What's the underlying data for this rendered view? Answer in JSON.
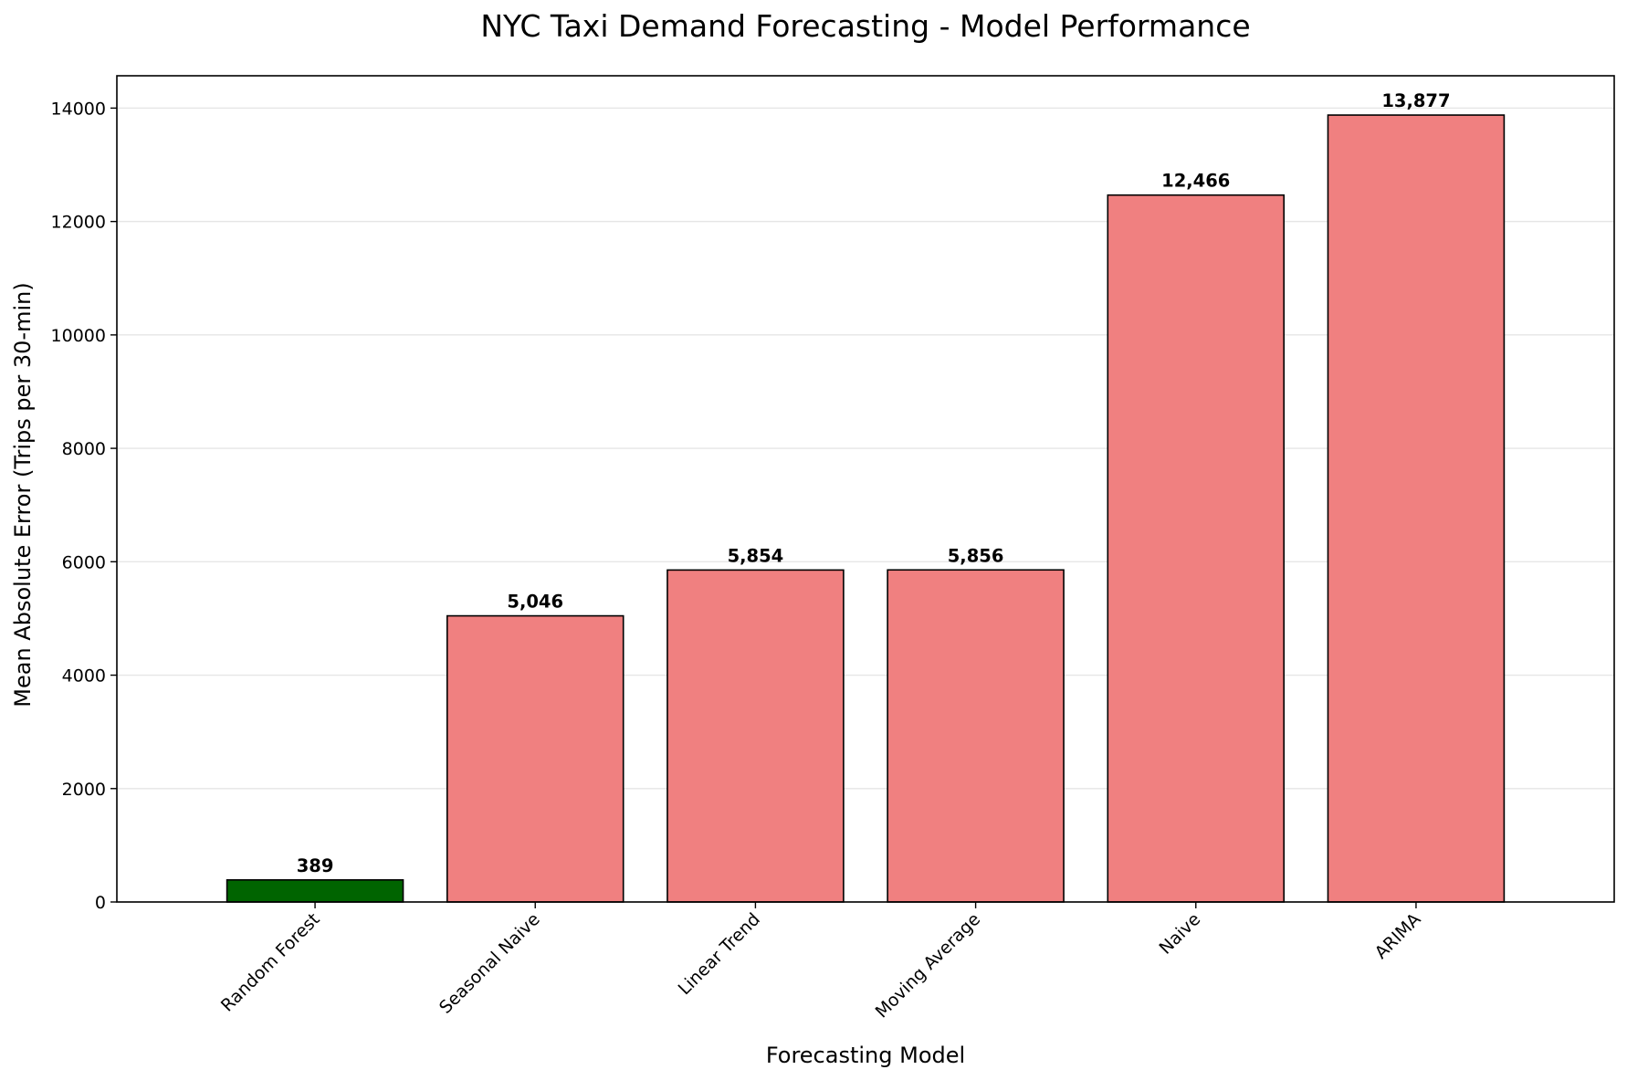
{
  "chart_data": {
    "type": "bar",
    "title": "NYC Taxi Demand Forecasting - Model Performance",
    "xlabel": "Forecasting Model",
    "ylabel": "Mean Absolute Error (Trips per 30-min)",
    "categories": [
      "Random Forest",
      "Seasonal Naive",
      "Linear Trend",
      "Moving Average",
      "Naive",
      "ARIMA"
    ],
    "values": [
      389,
      5046,
      5854,
      5856,
      12466,
      13877
    ],
    "data_labels": [
      "389",
      "5,046",
      "5,854",
      "5,856",
      "12,466",
      "13,877"
    ],
    "bar_colors": [
      "#006400",
      "#f08080",
      "#f08080",
      "#f08080",
      "#f08080",
      "#f08080"
    ],
    "edge_color": "#000000",
    "ylim": [
      0,
      14570
    ],
    "yticks": [
      0,
      2000,
      4000,
      6000,
      8000,
      10000,
      12000,
      14000
    ],
    "ytick_labels": [
      "0",
      "2000",
      "4000",
      "6000",
      "8000",
      "10000",
      "12000",
      "14000"
    ],
    "grid": "y-axis only",
    "xtick_rotation_deg": 45
  }
}
